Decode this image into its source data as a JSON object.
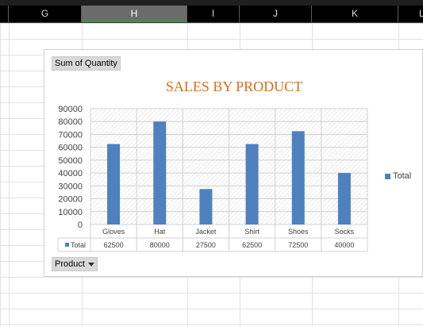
{
  "columns": [
    "G",
    "H",
    "I",
    "J",
    "K",
    "L"
  ],
  "selected_column": "H",
  "pivot": {
    "value_field": "Sum of Quantity",
    "axis_field": "Product",
    "legend_label": "Total",
    "table_row_label": "Total"
  },
  "colors": {
    "bar": "#4e81bd",
    "title": "#d86d1a"
  },
  "icons": {
    "filter": "dropdown-arrow-icon"
  },
  "chart_data": {
    "type": "bar",
    "title": "SALES BY PRODUCT",
    "categories": [
      "Gloves",
      "Hat",
      "Jacket",
      "Shirt",
      "Shoes",
      "Socks"
    ],
    "series": [
      {
        "name": "Total",
        "values": [
          62500,
          80000,
          27500,
          62500,
          72500,
          40000
        ]
      }
    ],
    "ylim": [
      0,
      90000
    ],
    "yticks": [
      "90000",
      "80000",
      "70000",
      "60000",
      "50000",
      "40000",
      "30000",
      "20000",
      "10000",
      "0"
    ],
    "grid": true,
    "legend_position": "right",
    "data_table": true
  }
}
